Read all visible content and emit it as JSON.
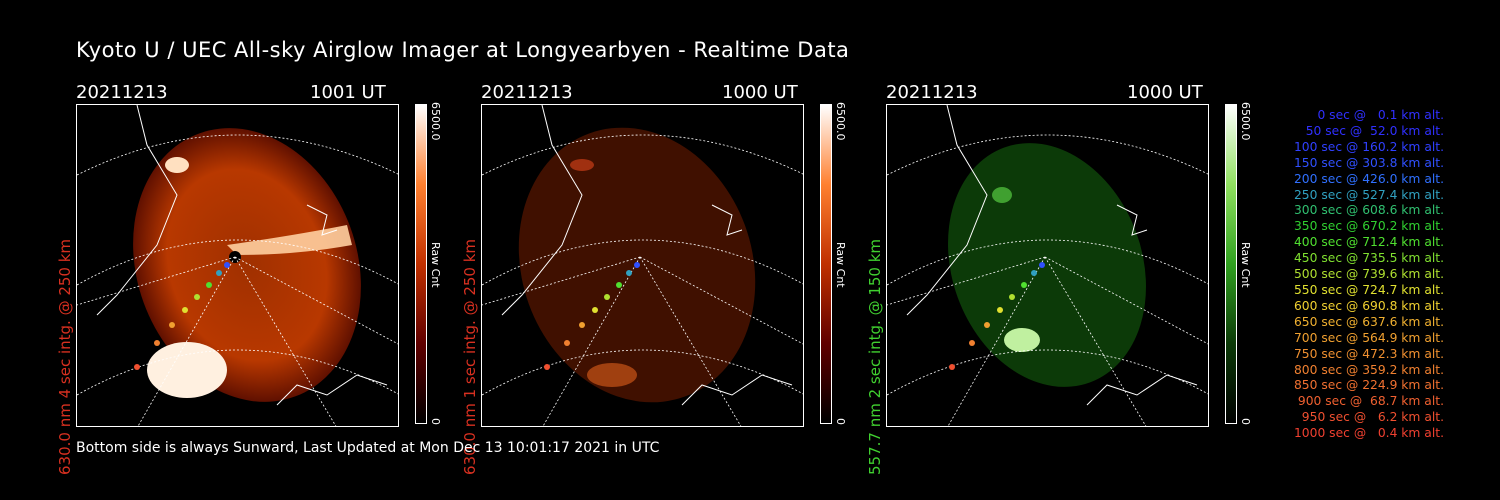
{
  "title": "Kyoto U / UEC All-sky Airglow Imager at Longyearbyen - Realtime Data",
  "footer": "Bottom side is always Sunward, Last Updated at Mon Dec 13 10:01:17 2021 in UTC",
  "panels": [
    {
      "date": "20211213",
      "time": "1001 UT",
      "ylabel": "630.0 nm 4 sec intg. @ 250 km",
      "ylabel_color": "#d83020",
      "cbar_max": "6500.0",
      "cbar_unit": "Raw Cnt",
      "cbar_min": "0",
      "colormap": "red"
    },
    {
      "date": "20211213",
      "time": "1000 UT",
      "ylabel": "630.0 nm 1 sec intg. @ 250 km",
      "ylabel_color": "#d83020",
      "cbar_max": "6500.0",
      "cbar_unit": "Raw Cnt",
      "cbar_min": "0",
      "colormap": "red"
    },
    {
      "date": "20211213",
      "time": "1000 UT",
      "ylabel": "557.7 nm 2 sec intg. @ 150 km",
      "ylabel_color": "#40d030",
      "cbar_max": "6500.0",
      "cbar_unit": "Raw Cnt",
      "cbar_min": "0",
      "colormap": "green"
    }
  ],
  "legend": [
    {
      "text": "0 sec @   0.1 km alt.",
      "color": "#3030ff"
    },
    {
      "text": "50 sec @  52.0 km alt.",
      "color": "#3030ff"
    },
    {
      "text": "100 sec @ 160.2 km alt.",
      "color": "#3040ff"
    },
    {
      "text": "150 sec @ 303.8 km alt.",
      "color": "#3050ff"
    },
    {
      "text": "200 sec @ 426.0 km alt.",
      "color": "#3070ff"
    },
    {
      "text": "250 sec @ 527.4 km alt.",
      "color": "#30a0c0"
    },
    {
      "text": "300 sec @ 608.6 km alt.",
      "color": "#30c070"
    },
    {
      "text": "350 sec @ 670.2 km alt.",
      "color": "#30d030"
    },
    {
      "text": "400 sec @ 712.4 km alt.",
      "color": "#50e030"
    },
    {
      "text": "450 sec @ 735.5 km alt.",
      "color": "#80e030"
    },
    {
      "text": "500 sec @ 739.6 km alt.",
      "color": "#b0e030"
    },
    {
      "text": "550 sec @ 724.7 km alt.",
      "color": "#e0e030"
    },
    {
      "text": "600 sec @ 690.8 km alt.",
      "color": "#f0d030"
    },
    {
      "text": "650 sec @ 637.6 km alt.",
      "color": "#f0b030"
    },
    {
      "text": "700 sec @ 564.9 km alt.",
      "color": "#f0a030"
    },
    {
      "text": "750 sec @ 472.3 km alt.",
      "color": "#f09030"
    },
    {
      "text": "800 sec @ 359.2 km alt.",
      "color": "#f08030"
    },
    {
      "text": "850 sec @ 224.9 km alt.",
      "color": "#f07030"
    },
    {
      "text": "900 sec @  68.7 km alt.",
      "color": "#f06030"
    },
    {
      "text": "950 sec @   6.2 km alt.",
      "color": "#f05030"
    },
    {
      "text": "1000 sec @   0.4 km alt.",
      "color": "#f04030"
    }
  ]
}
